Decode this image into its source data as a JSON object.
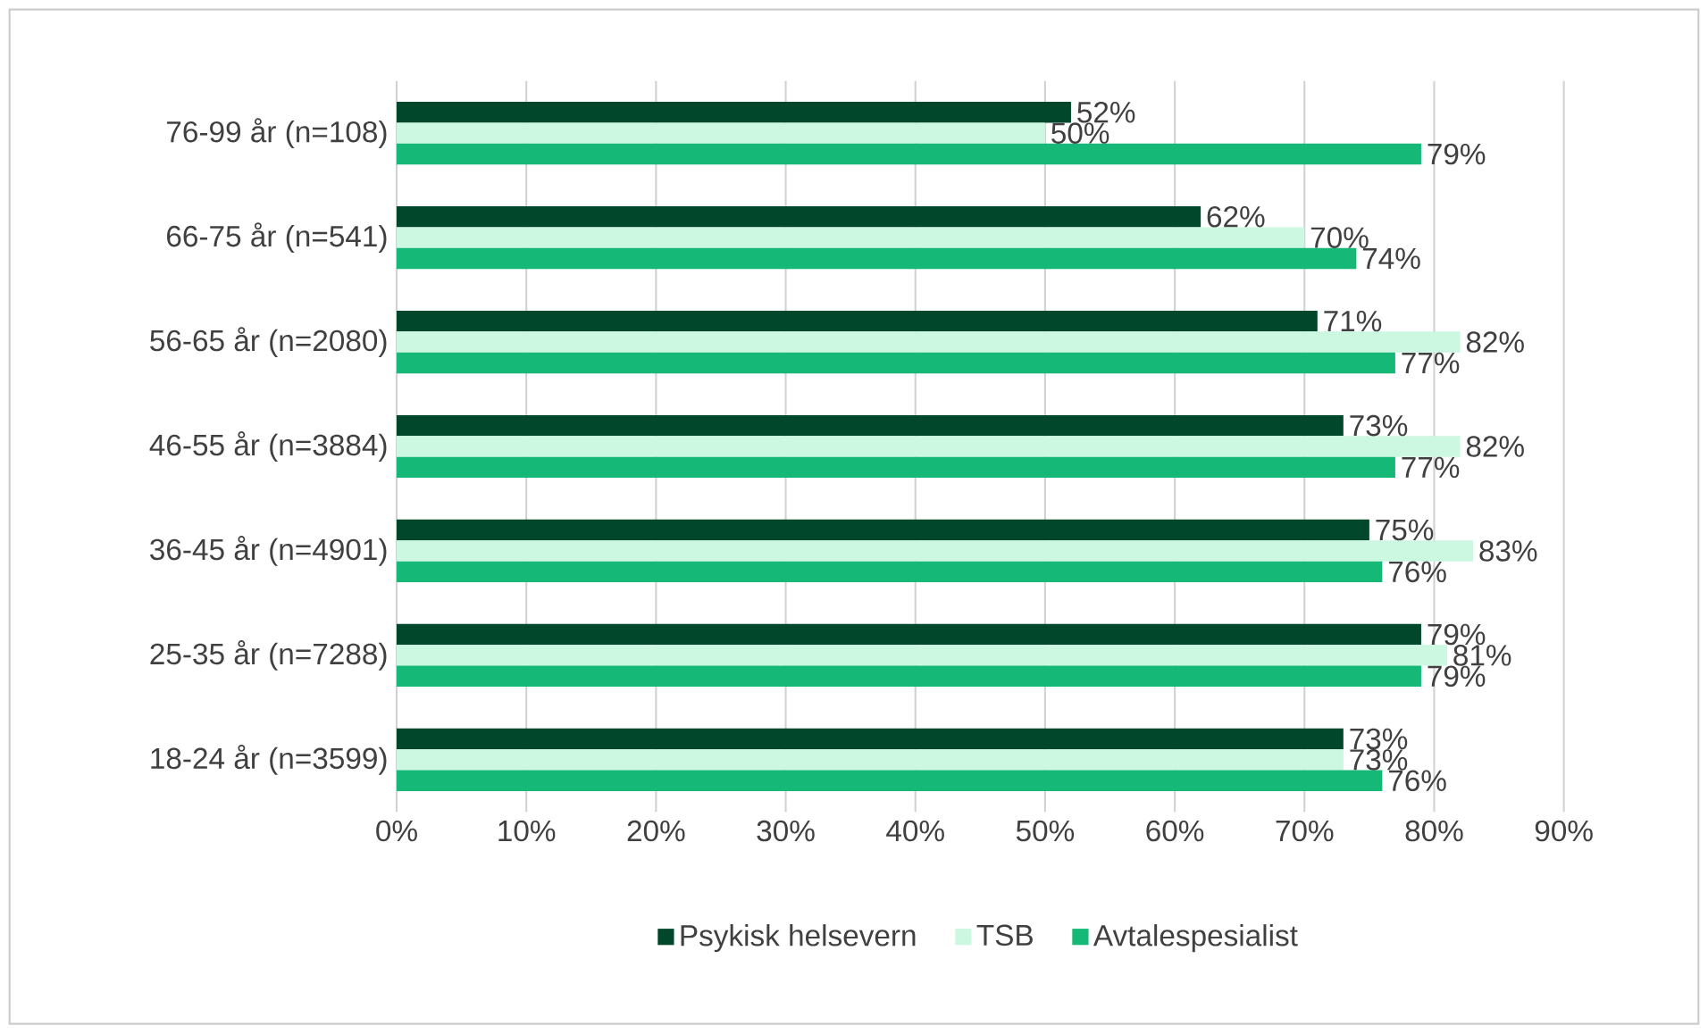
{
  "chart_data": {
    "type": "bar",
    "orientation": "horizontal",
    "categories": [
      "76-99 år (n=108)",
      "66-75 år (n=541)",
      "56-65 år (n=2080)",
      "46-55 år (n=3884)",
      "36-45 år (n=4901)",
      "25-35 år (n=7288)",
      "18-24 år (n=3599)"
    ],
    "series": [
      {
        "name": "Psykisk helsevern",
        "color": "#00472b",
        "values": [
          52,
          62,
          71,
          73,
          75,
          79,
          73
        ],
        "value_labels": [
          "52%",
          "62%",
          "71%",
          "73%",
          "75%",
          "79%",
          "73%"
        ]
      },
      {
        "name": "TSB",
        "color": "#ccf7e0",
        "values": [
          50,
          70,
          82,
          82,
          83,
          81,
          73
        ],
        "value_labels": [
          "50%",
          "70%",
          "82%",
          "82%",
          "83%",
          "81%",
          "73%"
        ]
      },
      {
        "name": "Avtalespesialist",
        "color": "#16b877",
        "values": [
          79,
          74,
          77,
          77,
          76,
          79,
          76
        ],
        "value_labels": [
          "79%",
          "74%",
          "77%",
          "77%",
          "76%",
          "79%",
          "76%"
        ]
      }
    ],
    "xlim": [
      0,
      90
    ],
    "xticks": [
      {
        "value": 0,
        "label": "0%"
      },
      {
        "value": 10,
        "label": "10%"
      },
      {
        "value": 20,
        "label": "20%"
      },
      {
        "value": 30,
        "label": "30%"
      },
      {
        "value": 40,
        "label": "40%"
      },
      {
        "value": 50,
        "label": "50%"
      },
      {
        "value": 60,
        "label": "60%"
      },
      {
        "value": 70,
        "label": "70%"
      },
      {
        "value": 80,
        "label": "80%"
      },
      {
        "value": 90,
        "label": "90%"
      }
    ],
    "grid": "x",
    "legend": "bottom"
  }
}
